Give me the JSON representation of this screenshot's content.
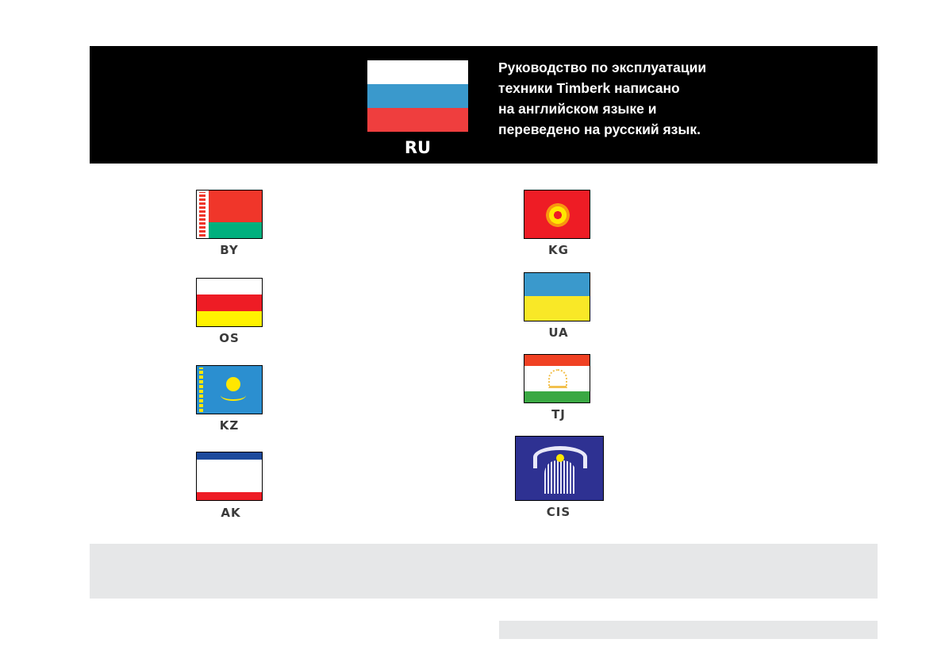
{
  "header": {
    "flag_code": "RU",
    "flag_colors": [
      "#ffffff",
      "#3a99cc",
      "#ef3e3e"
    ],
    "text": "Руководство по эксплуатации\nтехники Timberk написано\nна английском языке и\nпереведено на русский язык."
  },
  "flags": {
    "left": [
      {
        "code": "BY",
        "colors": [
          "#f0362a",
          "#00b07e",
          "#ffffff"
        ]
      },
      {
        "code": "OS",
        "colors": [
          "#ffffff",
          "#ee1c25",
          "#fff200"
        ]
      },
      {
        "code": "KZ",
        "colors": [
          "#2b8fd0",
          "#ffe700"
        ]
      },
      {
        "code": "AK",
        "colors": [
          "#1d4a9c",
          "#ffffff",
          "#ee1c25"
        ]
      }
    ],
    "right": [
      {
        "code": "KG",
        "colors": [
          "#ee1c25",
          "#ffe700"
        ]
      },
      {
        "code": "UA",
        "colors": [
          "#3a99cc",
          "#f9e827"
        ]
      },
      {
        "code": "TJ",
        "colors": [
          "#f04123",
          "#ffffff",
          "#3aa843",
          "#f2c14e"
        ]
      },
      {
        "code": "CIS",
        "colors": [
          "#2e3192",
          "#ffffff",
          "#ffe700"
        ]
      }
    ]
  }
}
